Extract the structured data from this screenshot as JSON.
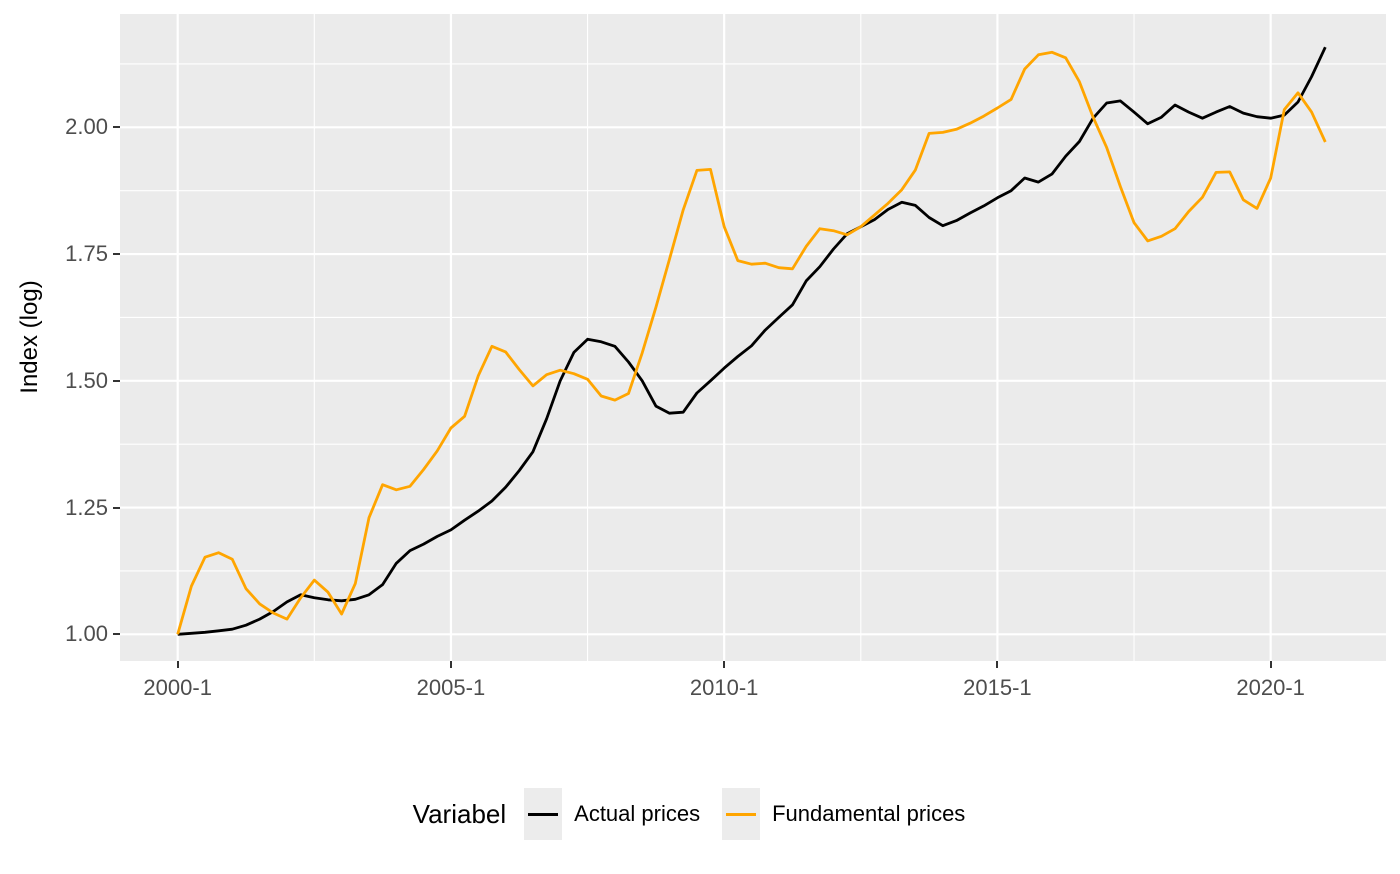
{
  "figure": {
    "y_axis_title": "Index (log)",
    "legend": {
      "title": "Variabel",
      "items": [
        {
          "label": "Actual prices",
          "color": "#000000"
        },
        {
          "label": "Fundamental prices",
          "color": "#FFA500"
        }
      ]
    }
  },
  "chart_data": {
    "type": "line",
    "title": "",
    "xlabel": "",
    "ylabel": "Index (log)",
    "legend_position": "bottom",
    "panel_bg": "#EBEBEB",
    "grid_color": "#FFFFFF",
    "axis_text_color": "#4d4d4d",
    "x_tick_labels": [
      "2000-1",
      "2005-1",
      "2010-1",
      "2015-1",
      "2020-1"
    ],
    "x_tick_quarter_index": [
      0,
      20,
      40,
      60,
      80
    ],
    "x_minor_quarter_index": [
      10,
      30,
      50,
      70
    ],
    "y_tick_labels": [
      "1.00",
      "1.25",
      "1.50",
      "1.75",
      "2.00"
    ],
    "y_tick_values": [
      1.0,
      1.25,
      1.5,
      1.75,
      2.0
    ],
    "y_minor_values": [
      1.125,
      1.375,
      1.625,
      1.875,
      2.125
    ],
    "ylim": [
      0.94,
      2.22
    ],
    "categories": [
      "2000-1",
      "2000-2",
      "2000-3",
      "2000-4",
      "2001-1",
      "2001-2",
      "2001-3",
      "2001-4",
      "2002-1",
      "2002-2",
      "2002-3",
      "2002-4",
      "2003-1",
      "2003-2",
      "2003-3",
      "2003-4",
      "2004-1",
      "2004-2",
      "2004-3",
      "2004-4",
      "2005-1",
      "2005-2",
      "2005-3",
      "2005-4",
      "2006-1",
      "2006-2",
      "2006-3",
      "2006-4",
      "2007-1",
      "2007-2",
      "2007-3",
      "2007-4",
      "2008-1",
      "2008-2",
      "2008-3",
      "2008-4",
      "2009-1",
      "2009-2",
      "2009-3",
      "2009-4",
      "2010-1",
      "2010-2",
      "2010-3",
      "2010-4",
      "2011-1",
      "2011-2",
      "2011-3",
      "2011-4",
      "2012-1",
      "2012-2",
      "2012-3",
      "2012-4",
      "2013-1",
      "2013-2",
      "2013-3",
      "2013-4",
      "2014-1",
      "2014-2",
      "2014-3",
      "2014-4",
      "2015-1",
      "2015-2",
      "2015-3",
      "2015-4",
      "2016-1",
      "2016-2",
      "2016-3",
      "2016-4",
      "2017-1",
      "2017-2",
      "2017-3",
      "2017-4",
      "2018-1",
      "2018-2",
      "2018-3",
      "2018-4",
      "2019-1",
      "2019-2",
      "2019-3",
      "2019-4",
      "2020-1",
      "2020-2",
      "2020-3",
      "2020-4",
      "2021-1"
    ],
    "series": [
      {
        "name": "Actual prices",
        "color": "#000000",
        "values": [
          1.0,
          1.002,
          1.004,
          1.007,
          1.01,
          1.018,
          1.03,
          1.045,
          1.064,
          1.078,
          1.072,
          1.068,
          1.066,
          1.069,
          1.078,
          1.098,
          1.14,
          1.165,
          1.178,
          1.193,
          1.206,
          1.225,
          1.243,
          1.263,
          1.29,
          1.323,
          1.36,
          1.425,
          1.5,
          1.556,
          1.582,
          1.577,
          1.568,
          1.537,
          1.5,
          1.45,
          1.436,
          1.438,
          1.476,
          1.5,
          1.525,
          1.548,
          1.569,
          1.6,
          1.625,
          1.65,
          1.697,
          1.725,
          1.76,
          1.79,
          1.804,
          1.818,
          1.838,
          1.852,
          1.846,
          1.822,
          1.806,
          1.816,
          1.831,
          1.845,
          1.861,
          1.875,
          1.9,
          1.892,
          1.908,
          1.943,
          1.972,
          2.018,
          2.048,
          2.052,
          2.03,
          2.007,
          2.02,
          2.044,
          2.03,
          2.018,
          2.03,
          2.041,
          2.028,
          2.021,
          2.018,
          2.024,
          2.05,
          2.1,
          2.158
        ]
      },
      {
        "name": "Fundamental prices",
        "color": "#FFA500",
        "values": [
          1.0,
          1.095,
          1.152,
          1.161,
          1.148,
          1.09,
          1.06,
          1.042,
          1.03,
          1.072,
          1.107,
          1.083,
          1.04,
          1.1,
          1.23,
          1.295,
          1.285,
          1.292,
          1.325,
          1.362,
          1.407,
          1.43,
          1.51,
          1.568,
          1.557,
          1.522,
          1.49,
          1.512,
          1.521,
          1.514,
          1.503,
          1.47,
          1.462,
          1.475,
          1.555,
          1.645,
          1.74,
          1.837,
          1.915,
          1.917,
          1.804,
          1.737,
          1.73,
          1.732,
          1.723,
          1.721,
          1.765,
          1.8,
          1.796,
          1.788,
          1.804,
          1.827,
          1.85,
          1.877,
          1.916,
          1.988,
          1.99,
          1.996,
          2.008,
          2.022,
          2.038,
          2.055,
          2.115,
          2.143,
          2.148,
          2.137,
          2.09,
          2.02,
          1.96,
          1.883,
          1.812,
          1.776,
          1.785,
          1.8,
          1.834,
          1.862,
          1.911,
          1.912,
          1.857,
          1.84,
          1.9,
          2.035,
          2.068,
          2.03,
          1.971
        ]
      }
    ]
  }
}
